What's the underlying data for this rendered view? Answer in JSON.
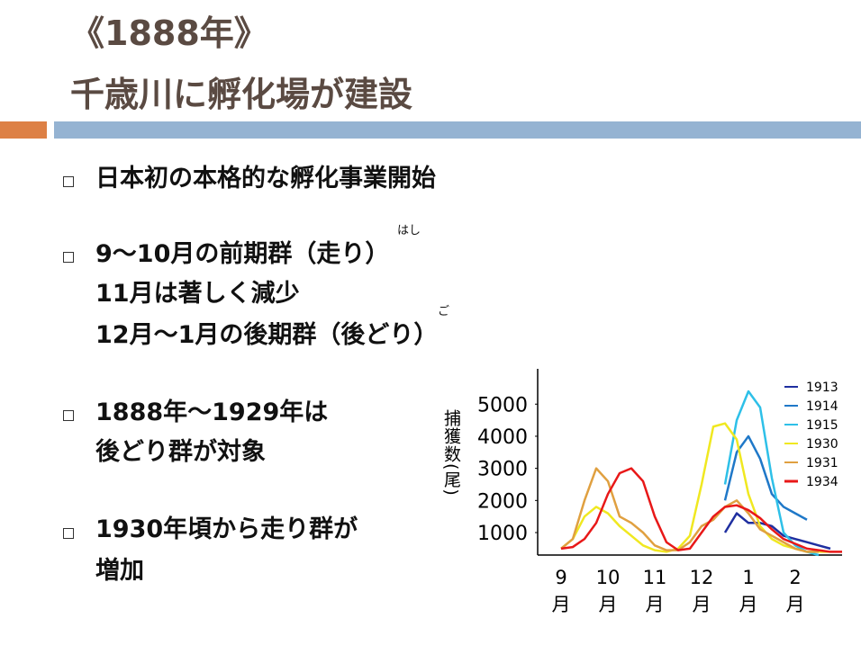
{
  "header": {
    "title": [
      "《1888年》",
      "千歳川に孵化場が建設"
    ]
  },
  "bullets": [
    {
      "lines": [
        "日本初の本格的な孵化事業開始"
      ]
    },
    {
      "lines": [
        "9～10月の前期群（走り）",
        "11月は著しく減少",
        "12月～1月の後期群（後どり）"
      ],
      "ruby": [
        "はし",
        "ご"
      ]
    },
    {
      "lines": [
        "1888年～1929年は",
        "後どり群が対象"
      ]
    },
    {
      "lines": [
        "1930年頃から走り群が",
        "増加"
      ]
    }
  ],
  "chart_data": {
    "type": "line",
    "y_label": "捕獲数(尾)",
    "categories": [
      "9\n月",
      "10\n月",
      "11\n月",
      "12\n月",
      "1\n月",
      "2\n月"
    ],
    "x": [
      0,
      0.25,
      0.5,
      0.75,
      1,
      1.25,
      1.5,
      1.75,
      2,
      2.25,
      2.5,
      2.75,
      3,
      3.25,
      3.5,
      3.75,
      4,
      4.25,
      4.5,
      4.75,
      5,
      5.25,
      5.5,
      5.75,
      6
    ],
    "xlim": [
      -0.5,
      6
    ],
    "ylim": [
      300,
      6100
    ],
    "yticks": [
      1000,
      2000,
      3000,
      4000,
      5000
    ],
    "series": [
      {
        "name": "1913",
        "color": "#1f2fa0",
        "values": [
          null,
          null,
          null,
          null,
          null,
          null,
          null,
          null,
          null,
          null,
          null,
          null,
          null,
          null,
          1000,
          1600,
          1300,
          1300,
          1200,
          900,
          800,
          700,
          600,
          500,
          null
        ]
      },
      {
        "name": "1914",
        "color": "#1f78c8",
        "values": [
          null,
          null,
          null,
          null,
          null,
          null,
          null,
          null,
          null,
          null,
          null,
          null,
          null,
          null,
          2000,
          3500,
          4000,
          3300,
          2200,
          1800,
          1600,
          1400,
          null,
          null,
          null
        ]
      },
      {
        "name": "1915",
        "color": "#2ec0e8",
        "values": [
          null,
          null,
          null,
          null,
          null,
          null,
          null,
          null,
          null,
          null,
          null,
          null,
          null,
          null,
          2500,
          4500,
          5400,
          4900,
          2700,
          1000,
          600,
          400,
          300,
          null,
          null
        ]
      },
      {
        "name": "1930",
        "color": "#f0e820",
        "values": [
          500,
          800,
          1500,
          1800,
          1600,
          1200,
          900,
          600,
          450,
          400,
          500,
          900,
          2500,
          4300,
          4400,
          3900,
          2200,
          1200,
          800,
          600,
          500,
          400,
          400,
          400,
          null
        ]
      },
      {
        "name": "1931",
        "color": "#e0a040",
        "values": [
          500,
          800,
          2000,
          3000,
          2600,
          1500,
          1300,
          1000,
          600,
          450,
          450,
          700,
          1200,
          1400,
          1800,
          2000,
          1600,
          1100,
          900,
          700,
          500,
          400,
          400,
          null,
          null
        ]
      },
      {
        "name": "1934",
        "color": "#e81818",
        "values": [
          500,
          550,
          800,
          1300,
          2200,
          2850,
          3000,
          2600,
          1500,
          700,
          450,
          500,
          1000,
          1500,
          1800,
          1850,
          1700,
          1450,
          1100,
          800,
          650,
          500,
          450,
          400,
          400
        ]
      }
    ]
  }
}
